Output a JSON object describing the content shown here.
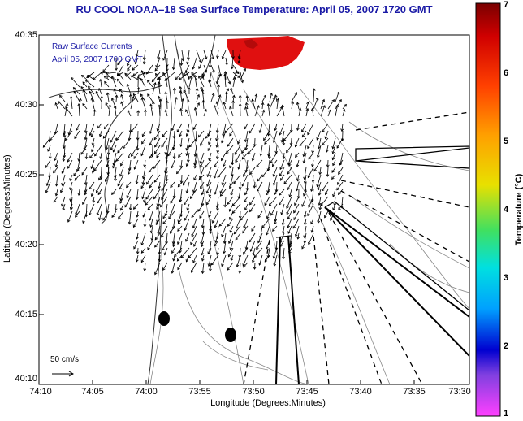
{
  "title": "RU COOL  NOAA–18  Sea Surface Temperature:  April 05, 2007 1720 GMT",
  "legend": {
    "line1": "Raw Surface Currents",
    "line2": "April 05, 2007 1700 GMT"
  },
  "scale_label": "50 cm/s",
  "axes": {
    "xlabel": "Longitude (Degrees:Minutes)",
    "ylabel": "Latitude (Degrees:Minutes)",
    "xticks": [
      "74:10",
      "74:05",
      "74:00",
      "73:55",
      "73:50",
      "73:45",
      "73:40",
      "73:35",
      "73:30"
    ],
    "yticks": [
      "40:35",
      "40:30",
      "40:25",
      "40:20",
      "40:15",
      "40:10"
    ]
  },
  "colorbar": {
    "label": "Temperature (°C)",
    "ticks": [
      "7",
      "6",
      "5",
      "4",
      "3",
      "2",
      "1"
    ],
    "range": [
      1,
      7
    ]
  },
  "colors": {
    "title": "#1a1aa6",
    "sst_patch": "#e01010"
  }
}
